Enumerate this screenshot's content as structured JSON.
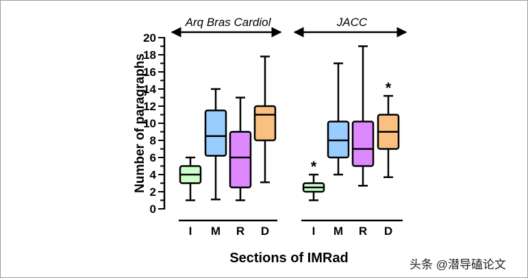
{
  "chart_data": {
    "type": "boxplot",
    "title": "",
    "xlabel": "Sections of IMRad",
    "ylabel": "Number of paragraphs",
    "ylim": [
      0,
      20
    ],
    "yticks": [
      0,
      2,
      4,
      6,
      8,
      10,
      12,
      14,
      16,
      18,
      20
    ],
    "groups": [
      {
        "name": "Arq Bras Cardiol",
        "boxes": [
          {
            "category": "I",
            "min": 1,
            "q1": 3,
            "median": 4,
            "q3": 5,
            "max": 6,
            "color": "#ccffcc",
            "marker": ""
          },
          {
            "category": "M",
            "min": 1.1,
            "q1": 6.2,
            "median": 8.5,
            "q3": 11.5,
            "max": 14,
            "color": "#99ccff",
            "marker": ""
          },
          {
            "category": "R",
            "min": 1,
            "q1": 2.5,
            "median": 6,
            "q3": 9,
            "max": 13,
            "color": "#dd88ff",
            "marker": ""
          },
          {
            "category": "D",
            "min": 3.1,
            "q1": 8,
            "median": 11,
            "q3": 12,
            "max": 17.8,
            "color": "#f9c080",
            "marker": ""
          }
        ]
      },
      {
        "name": "JACC",
        "boxes": [
          {
            "category": "I",
            "min": 1,
            "q1": 2,
            "median": 2.5,
            "q3": 3,
            "max": 4,
            "color": "#ccffcc",
            "marker": "*"
          },
          {
            "category": "M",
            "min": 4,
            "q1": 6,
            "median": 8,
            "q3": 10.2,
            "max": 17,
            "color": "#99ccff",
            "marker": ""
          },
          {
            "category": "R",
            "min": 2.7,
            "q1": 5,
            "median": 7,
            "q3": 10.2,
            "max": 19,
            "color": "#dd88ff",
            "marker": ""
          },
          {
            "category": "D",
            "min": 3.7,
            "q1": 7,
            "median": 9,
            "q3": 11,
            "max": 13.2,
            "color": "#f9c080",
            "marker": "*"
          }
        ]
      }
    ]
  },
  "watermark": "头条 @潜导磕论文"
}
